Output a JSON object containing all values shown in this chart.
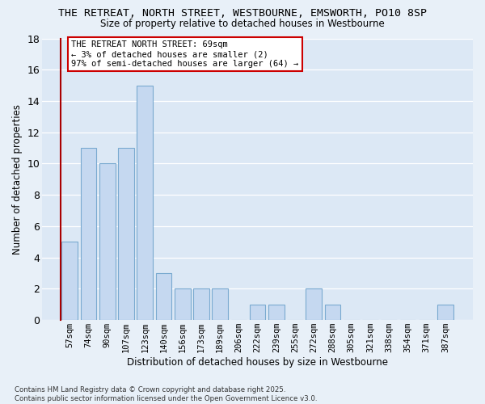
{
  "title_line1": "THE RETREAT, NORTH STREET, WESTBOURNE, EMSWORTH, PO10 8SP",
  "title_line2": "Size of property relative to detached houses in Westbourne",
  "xlabel": "Distribution of detached houses by size in Westbourne",
  "ylabel": "Number of detached properties",
  "categories": [
    "57sqm",
    "74sqm",
    "90sqm",
    "107sqm",
    "123sqm",
    "140sqm",
    "156sqm",
    "173sqm",
    "189sqm",
    "206sqm",
    "222sqm",
    "239sqm",
    "255sqm",
    "272sqm",
    "288sqm",
    "305sqm",
    "321sqm",
    "338sqm",
    "354sqm",
    "371sqm",
    "387sqm"
  ],
  "values": [
    5,
    11,
    10,
    11,
    15,
    3,
    2,
    2,
    2,
    0,
    1,
    1,
    0,
    2,
    1,
    0,
    0,
    0,
    0,
    0,
    1
  ],
  "bar_color": "#c5d8f0",
  "bar_edge_color": "#7aaad0",
  "ylim": [
    0,
    18
  ],
  "yticks": [
    0,
    2,
    4,
    6,
    8,
    10,
    12,
    14,
    16,
    18
  ],
  "annotation_text": "THE RETREAT NORTH STREET: 69sqm\n← 3% of detached houses are smaller (2)\n97% of semi-detached houses are larger (64) →",
  "annotation_box_color": "#cc0000",
  "fig_bg_color": "#e8f0f8",
  "plot_bg_color": "#dce8f5",
  "grid_color": "#ffffff",
  "red_line_color": "#aa0000",
  "footer": "Contains HM Land Registry data © Crown copyright and database right 2025.\nContains public sector information licensed under the Open Government Licence v3.0."
}
